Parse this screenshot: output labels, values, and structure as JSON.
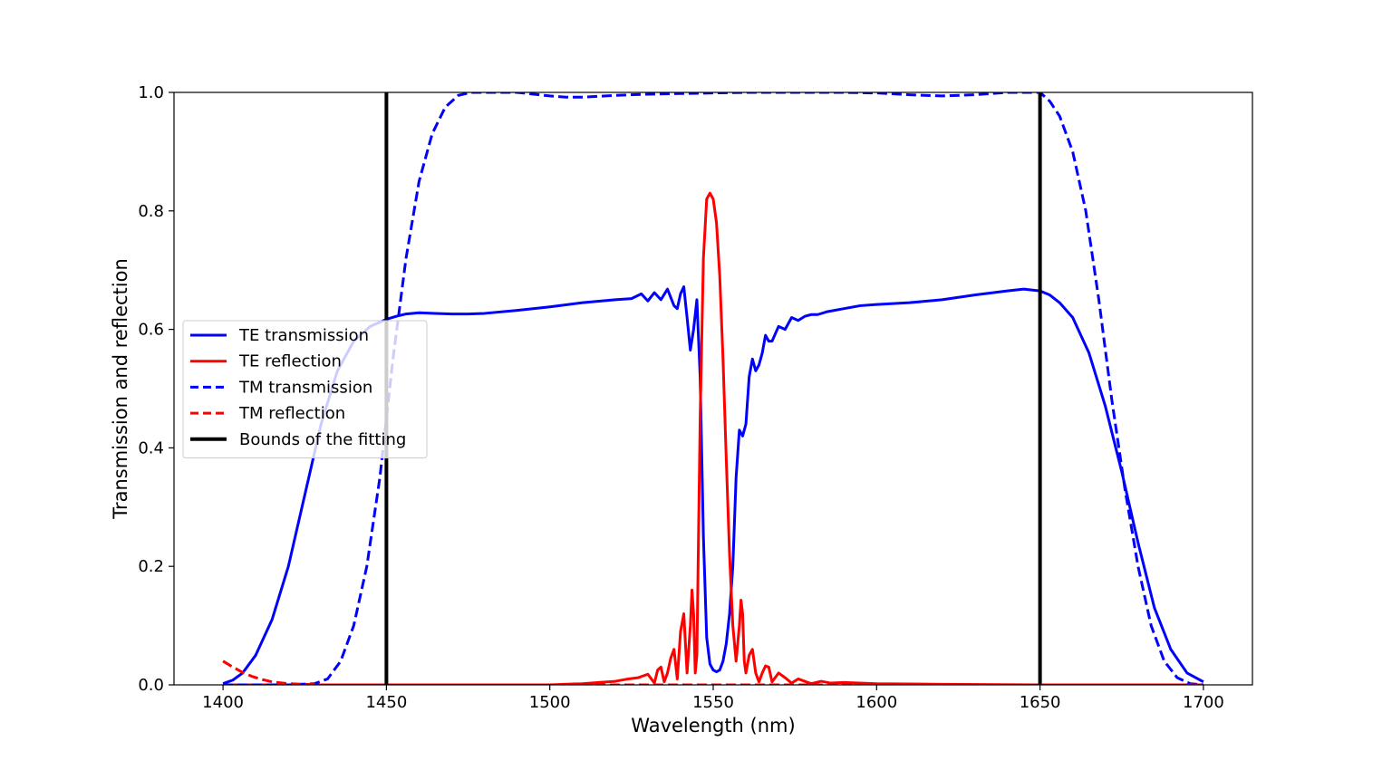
{
  "chart_data": {
    "type": "line",
    "title": "",
    "xlabel": "Wavelength (nm)",
    "ylabel": "Transmission and reflection",
    "xlim": [
      1385,
      1715
    ],
    "ylim": [
      0.0,
      1.0
    ],
    "xticks": [
      1400,
      1450,
      1500,
      1550,
      1600,
      1650,
      1700
    ],
    "yticks": [
      0.0,
      0.2,
      0.4,
      0.6,
      0.8,
      1.0
    ],
    "xtick_labels": [
      "1400",
      "1450",
      "1500",
      "1550",
      "1600",
      "1650",
      "1700"
    ],
    "ytick_labels": [
      "0.0",
      "0.2",
      "0.4",
      "0.6",
      "0.8",
      "1.0"
    ],
    "grid": false,
    "legend_position": "center-left",
    "series": [
      {
        "name": "TE transmission",
        "color": "#0000ff",
        "dash": "solid",
        "x": [
          1400,
          1403,
          1406,
          1410,
          1415,
          1420,
          1425,
          1430,
          1435,
          1440,
          1445,
          1450,
          1453,
          1456,
          1460,
          1465,
          1470,
          1475,
          1480,
          1490,
          1500,
          1510,
          1520,
          1525,
          1528,
          1530,
          1532,
          1534,
          1536,
          1538,
          1539,
          1540,
          1541,
          1542,
          1543,
          1544,
          1545,
          1546,
          1547,
          1548,
          1549,
          1550,
          1551,
          1552,
          1553,
          1554,
          1555,
          1556,
          1557,
          1558,
          1559,
          1560,
          1561,
          1562,
          1563,
          1564,
          1565,
          1566,
          1567,
          1568,
          1570,
          1572,
          1574,
          1576,
          1578,
          1580,
          1582,
          1585,
          1590,
          1595,
          1600,
          1610,
          1620,
          1630,
          1640,
          1645,
          1650,
          1653,
          1656,
          1660,
          1665,
          1670,
          1675,
          1680,
          1685,
          1690,
          1695,
          1700
        ],
        "y": [
          0.002,
          0.008,
          0.02,
          0.05,
          0.11,
          0.2,
          0.32,
          0.44,
          0.53,
          0.58,
          0.605,
          0.617,
          0.622,
          0.626,
          0.628,
          0.627,
          0.626,
          0.626,
          0.627,
          0.632,
          0.638,
          0.645,
          0.65,
          0.652,
          0.66,
          0.648,
          0.662,
          0.65,
          0.668,
          0.64,
          0.635,
          0.66,
          0.672,
          0.62,
          0.565,
          0.6,
          0.65,
          0.52,
          0.25,
          0.08,
          0.035,
          0.025,
          0.022,
          0.025,
          0.04,
          0.07,
          0.12,
          0.2,
          0.35,
          0.43,
          0.42,
          0.44,
          0.52,
          0.55,
          0.53,
          0.54,
          0.56,
          0.59,
          0.58,
          0.58,
          0.605,
          0.6,
          0.62,
          0.615,
          0.622,
          0.625,
          0.625,
          0.63,
          0.635,
          0.64,
          0.642,
          0.645,
          0.65,
          0.658,
          0.665,
          0.668,
          0.665,
          0.658,
          0.645,
          0.62,
          0.56,
          0.47,
          0.36,
          0.24,
          0.13,
          0.06,
          0.02,
          0.005
        ]
      },
      {
        "name": "TE reflection",
        "color": "#ff0000",
        "dash": "solid",
        "x": [
          1400,
          1430,
          1480,
          1500,
          1510,
          1515,
          1520,
          1524,
          1527,
          1530,
          1532,
          1533,
          1534,
          1535,
          1536,
          1537,
          1538,
          1539,
          1540,
          1541,
          1542,
          1543,
          1543.5,
          1544,
          1544.5,
          1545,
          1546,
          1547,
          1548,
          1549,
          1550,
          1551,
          1552,
          1553,
          1554,
          1555,
          1556,
          1557,
          1558,
          1558.5,
          1559,
          1559.5,
          1560,
          1561,
          1562,
          1563,
          1564,
          1565,
          1566,
          1567,
          1568,
          1570,
          1572,
          1574,
          1576,
          1578,
          1580,
          1583,
          1586,
          1590,
          1600,
          1620,
          1650,
          1700
        ],
        "y": [
          0.0,
          0.0,
          0.0,
          0.0,
          0.002,
          0.004,
          0.006,
          0.01,
          0.012,
          0.018,
          0.003,
          0.025,
          0.03,
          0.005,
          0.02,
          0.045,
          0.06,
          0.01,
          0.09,
          0.12,
          0.02,
          0.1,
          0.16,
          0.12,
          0.02,
          0.05,
          0.45,
          0.72,
          0.82,
          0.83,
          0.82,
          0.78,
          0.69,
          0.55,
          0.38,
          0.22,
          0.1,
          0.04,
          0.1,
          0.143,
          0.12,
          0.04,
          0.02,
          0.05,
          0.06,
          0.02,
          0.005,
          0.02,
          0.032,
          0.03,
          0.005,
          0.02,
          0.012,
          0.003,
          0.01,
          0.006,
          0.002,
          0.006,
          0.003,
          0.004,
          0.002,
          0.001,
          0.0,
          0.0
        ]
      },
      {
        "name": "TM transmission",
        "color": "#0000ff",
        "dash": "dashed",
        "x": [
          1400,
          1420,
          1428,
          1432,
          1436,
          1440,
          1444,
          1448,
          1452,
          1456,
          1460,
          1464,
          1468,
          1472,
          1476,
          1480,
          1490,
          1500,
          1505,
          1510,
          1520,
          1530,
          1540,
          1550,
          1560,
          1570,
          1580,
          1590,
          1600,
          1610,
          1620,
          1630,
          1640,
          1645,
          1650,
          1653,
          1656,
          1660,
          1664,
          1668,
          1672,
          1676,
          1680,
          1684,
          1688,
          1692,
          1696,
          1700
        ],
        "y": [
          0.0,
          0.0,
          0.002,
          0.01,
          0.04,
          0.1,
          0.2,
          0.35,
          0.55,
          0.72,
          0.85,
          0.93,
          0.975,
          0.995,
          1.0,
          1.0,
          1.0,
          0.994,
          0.992,
          0.992,
          0.995,
          0.997,
          0.998,
          0.999,
          1.0,
          1.0,
          1.0,
          1.0,
          0.999,
          0.996,
          0.994,
          0.996,
          1.0,
          1.0,
          1.0,
          0.985,
          0.96,
          0.9,
          0.8,
          0.65,
          0.48,
          0.33,
          0.2,
          0.1,
          0.04,
          0.012,
          0.002,
          0.0
        ]
      },
      {
        "name": "TM reflection",
        "color": "#ff0000",
        "dash": "dashed",
        "x": [
          1400,
          1403,
          1406,
          1409,
          1412,
          1415,
          1420,
          1425,
          1430,
          1440,
          1500,
          1600,
          1700
        ],
        "y": [
          0.04,
          0.03,
          0.021,
          0.014,
          0.009,
          0.005,
          0.002,
          0.001,
          0.0,
          0.0,
          0.0,
          0.0,
          0.0
        ]
      }
    ],
    "vertical_lines": {
      "name": "Bounds of the fitting",
      "color": "#000000",
      "x": [
        1450,
        1650
      ]
    },
    "legend": [
      {
        "label": "TE transmission",
        "color": "#0000ff",
        "dash": "solid",
        "width": 3
      },
      {
        "label": "TE reflection",
        "color": "#ff0000",
        "dash": "solid",
        "width": 3
      },
      {
        "label": "TM transmission",
        "color": "#0000ff",
        "dash": "dashed",
        "width": 3
      },
      {
        "label": "TM reflection",
        "color": "#ff0000",
        "dash": "dashed",
        "width": 3
      },
      {
        "label": "Bounds of the fitting",
        "color": "#000000",
        "dash": "solid",
        "width": 4
      }
    ]
  }
}
